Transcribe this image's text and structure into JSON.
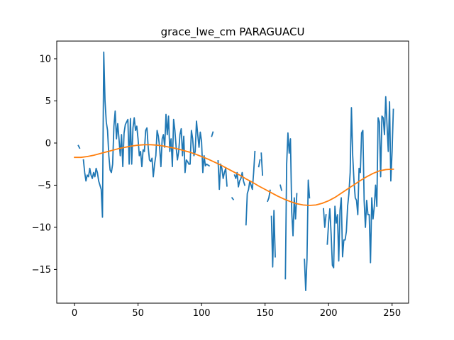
{
  "chart_data": {
    "type": "line",
    "title": "grace_lwe_cm PARAGUACU",
    "xlabel": "",
    "ylabel": "",
    "xlim": [
      -14,
      263
    ],
    "ylim": [
      -19.0,
      12.1
    ],
    "xticks": [
      0,
      50,
      100,
      150,
      200,
      250
    ],
    "xtick_labels": [
      "0",
      "50",
      "100",
      "150",
      "200",
      "250"
    ],
    "yticks": [
      -15,
      -10,
      -5,
      0,
      5,
      10
    ],
    "ytick_labels": [
      "−15",
      "−10",
      "−5",
      "0",
      "5",
      "10"
    ],
    "grid": false,
    "legend": "none",
    "series": [
      {
        "color": "#1f77b4",
        "segments": [
          {
            "x": [
              3,
              4
            ],
            "y": [
              -0.3,
              -0.6
            ]
          },
          {
            "x": [
              7,
              8,
              9,
              10,
              11,
              12,
              13,
              14,
              15,
              16,
              17,
              18,
              19,
              20,
              21,
              22,
              23,
              24,
              25,
              26,
              27,
              28,
              29,
              30,
              31,
              32,
              33,
              34,
              35,
              36,
              37,
              38,
              39,
              40,
              41,
              42,
              43,
              44,
              45,
              46,
              47,
              48,
              49,
              50,
              51,
              52,
              53,
              54,
              55,
              56,
              57,
              58,
              59,
              60,
              61,
              62,
              63,
              64,
              65,
              66,
              67,
              68,
              69,
              70,
              71,
              72,
              73,
              74,
              75,
              76,
              77,
              78,
              79,
              80,
              81,
              82,
              83,
              84,
              85,
              86,
              87,
              88,
              89,
              90,
              91,
              92,
              93,
              94,
              95,
              96,
              97,
              98,
              99,
              100,
              101,
              102,
              103,
              104,
              105,
              106
            ],
            "y": [
              -2.0,
              -3.5,
              -4.5,
              -3.8,
              -4.0,
              -3.0,
              -3.8,
              -4.2,
              -3.5,
              -4.0,
              -3.0,
              -3.5,
              -4.5,
              -5.0,
              -5.5,
              -8.8,
              10.8,
              5.0,
              2.5,
              1.5,
              -1.5,
              -3.2,
              -3.5,
              -2.5,
              2.0,
              3.8,
              0.5,
              2.3,
              0.5,
              -1.5,
              1.0,
              -2.8,
              1.2,
              2.2,
              2.5,
              2.8,
              -2.5,
              2.9,
              -2.5,
              1.8,
              3.0,
              1.5,
              2.0,
              0.5,
              -1.5,
              -1.0,
              -2.8,
              -0.8,
              -1.0,
              1.5,
              1.8,
              -0.5,
              -2.0,
              -2.2,
              -1.8,
              -4.0,
              -2.5,
              -1.5,
              1.5,
              0.8,
              -0.5,
              -2.8,
              0.5,
              1.0,
              -0.5,
              3.4,
              1.0,
              3.2,
              -1.0,
              0.5,
              -2.8,
              2.8,
              1.5,
              -0.5,
              -2.0,
              -1.0,
              1.0,
              1.7,
              -1.5,
              0.8,
              -3.5,
              -2.0,
              -2.2,
              -2.5,
              -2.5,
              1.5,
              0.5,
              -1.5,
              -1.0,
              2.6,
              1.0,
              -0.5,
              1.3,
              0.2,
              -3.5,
              -1.5,
              -2.7,
              -2.5,
              -2.6,
              -2.7
            ]
          },
          {
            "x": [
              108,
              109
            ],
            "y": [
              0.8,
              1.3
            ]
          },
          {
            "x": [
              113,
              114,
              115,
              116,
              117,
              118,
              119,
              120
            ],
            "y": [
              -2.1,
              -5.5,
              -2.5,
              -3.0,
              -4.2,
              -3.5,
              -3.0,
              -5.1
            ]
          },
          {
            "x": [
              124,
              125
            ],
            "y": [
              -6.5,
              -6.7
            ]
          },
          {
            "x": [
              126,
              127,
              128,
              129,
              130,
              131,
              132,
              133,
              134
            ],
            "y": [
              -3.8,
              -4.2,
              -3.5,
              -5.2,
              -4.5,
              -4.2,
              -3.5,
              -4.5,
              -5.0
            ]
          },
          {
            "x": [
              135,
              136,
              137,
              138,
              139,
              140,
              141,
              142
            ],
            "y": [
              -9.7,
              -6.0,
              -5.5,
              -4.5,
              -5.0,
              -5.5,
              -3.5,
              -1.0
            ]
          },
          {
            "x": [
              145,
              146
            ],
            "y": [
              -2.8,
              -2.0
            ]
          },
          {
            "x": [
              147,
              148
            ],
            "y": [
              -1.2,
              -3.8
            ]
          },
          {
            "x": [
              152,
              153,
              154
            ],
            "y": [
              -6.9,
              -6.5,
              -5.6
            ]
          },
          {
            "x": [
              155,
              156,
              157,
              158
            ],
            "y": [
              -8.7,
              -14.7,
              -8.0,
              -13.5
            ]
          },
          {
            "x": [
              162,
              163
            ],
            "y": [
              -5.0,
              -5.6
            ]
          },
          {
            "x": [
              166,
              167,
              168,
              169,
              170,
              171,
              172,
              173,
              174,
              175
            ],
            "y": [
              -16.1,
              -2.5,
              1.2,
              -1.2,
              0.5,
              -8.2,
              -11.0,
              -6.5,
              -9.0,
              -6.0
            ]
          },
          {
            "x": [
              181,
              182,
              183,
              184,
              185
            ],
            "y": [
              -13.8,
              -17.5,
              -13.8,
              -4.4,
              -6.5
            ]
          },
          {
            "x": [
              196,
              197,
              198
            ],
            "y": [
              -7.8,
              -10.0,
              -8.5
            ]
          },
          {
            "x": [
              199,
              200,
              201,
              202,
              203,
              204,
              205,
              206,
              207,
              208,
              209,
              210,
              211,
              212,
              213,
              214,
              215,
              216,
              217,
              218,
              219,
              220,
              221,
              222,
              223,
              224,
              225,
              226,
              227,
              228,
              229,
              230,
              231,
              232,
              233,
              234,
              235,
              236,
              237,
              238,
              239,
              240,
              241,
              242,
              243,
              244,
              245,
              246,
              247,
              248,
              249,
              250,
              251
            ],
            "y": [
              -12.0,
              -9.5,
              -7.8,
              -10.8,
              -14.5,
              -14.8,
              -7.5,
              -9.5,
              -8.5,
              -14.0,
              -8.0,
              -6.5,
              -13.5,
              -11.5,
              -11.5,
              -10.5,
              -7.5,
              -6.0,
              -3.5,
              4.2,
              -1.5,
              -4.5,
              -6.5,
              -6.8,
              -8.5,
              -3.0,
              -3.5,
              1.2,
              1.5,
              -6.8,
              -10.0,
              -6.8,
              -8.5,
              -8.5,
              -14.2,
              -6.5,
              -9.0,
              -7.5,
              -5.0,
              -7.5,
              3.0,
              2.5,
              -4.0,
              3.2,
              3.0,
              1.0,
              5.5,
              2.2,
              -1.0,
              4.9,
              -4.5,
              -1.0,
              4.0
            ]
          }
        ]
      },
      {
        "color": "#ff7f0e",
        "x": [
          0,
          5,
          10,
          15,
          20,
          25,
          30,
          35,
          40,
          45,
          50,
          55,
          60,
          65,
          70,
          75,
          80,
          85,
          90,
          95,
          100,
          105,
          110,
          115,
          120,
          125,
          130,
          135,
          140,
          145,
          150,
          155,
          160,
          165,
          170,
          175,
          180,
          185,
          190,
          195,
          200,
          205,
          210,
          215,
          220,
          225,
          230,
          235,
          240,
          245,
          250,
          251
        ],
        "y": [
          -1.7,
          -1.7,
          -1.6,
          -1.45,
          -1.25,
          -1.05,
          -0.85,
          -0.65,
          -0.5,
          -0.35,
          -0.25,
          -0.2,
          -0.2,
          -0.25,
          -0.35,
          -0.5,
          -0.65,
          -0.85,
          -1.05,
          -1.3,
          -1.6,
          -1.9,
          -2.25,
          -2.6,
          -3.0,
          -3.4,
          -3.8,
          -4.25,
          -4.65,
          -5.1,
          -5.5,
          -5.9,
          -6.3,
          -6.65,
          -6.95,
          -7.2,
          -7.35,
          -7.4,
          -7.35,
          -7.15,
          -6.85,
          -6.45,
          -5.95,
          -5.45,
          -4.95,
          -4.45,
          -4.0,
          -3.6,
          -3.3,
          -3.15,
          -3.1,
          -3.1
        ]
      }
    ]
  }
}
